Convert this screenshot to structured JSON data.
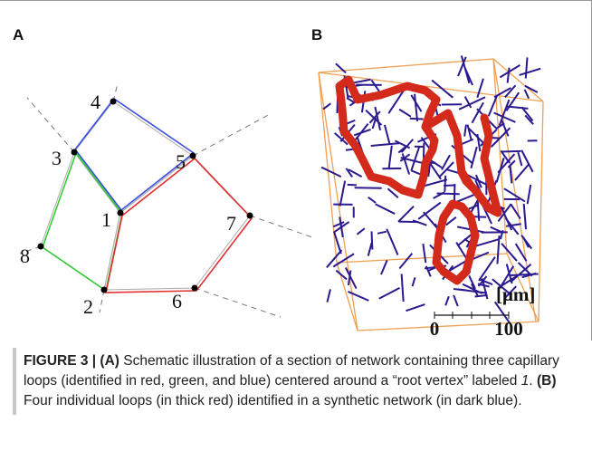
{
  "panels": [
    {
      "label": "A",
      "nodes": [
        "1",
        "2",
        "3",
        "4",
        "5",
        "6",
        "7",
        "8"
      ]
    },
    {
      "label": "B",
      "scale_unit": "[μm]",
      "scale_ticks": [
        0,
        100
      ]
    }
  ],
  "caption": {
    "segments": [
      {
        "text": "FIGURE 3 | (A)",
        "style": "bold"
      },
      {
        "text": " Schematic illustration of a section of network containing three capillary loops (identified in red, green, and blue) centered around a “root vertex” labeled ",
        "style": "normal"
      },
      {
        "text": "1",
        "style": "italic"
      },
      {
        "text": ". ",
        "style": "normal"
      },
      {
        "text": "(B)",
        "style": "bold"
      },
      {
        "text": " Four individual loops (in thick red) identified in a synthetic network (in dark blue).",
        "style": "normal"
      }
    ]
  }
}
